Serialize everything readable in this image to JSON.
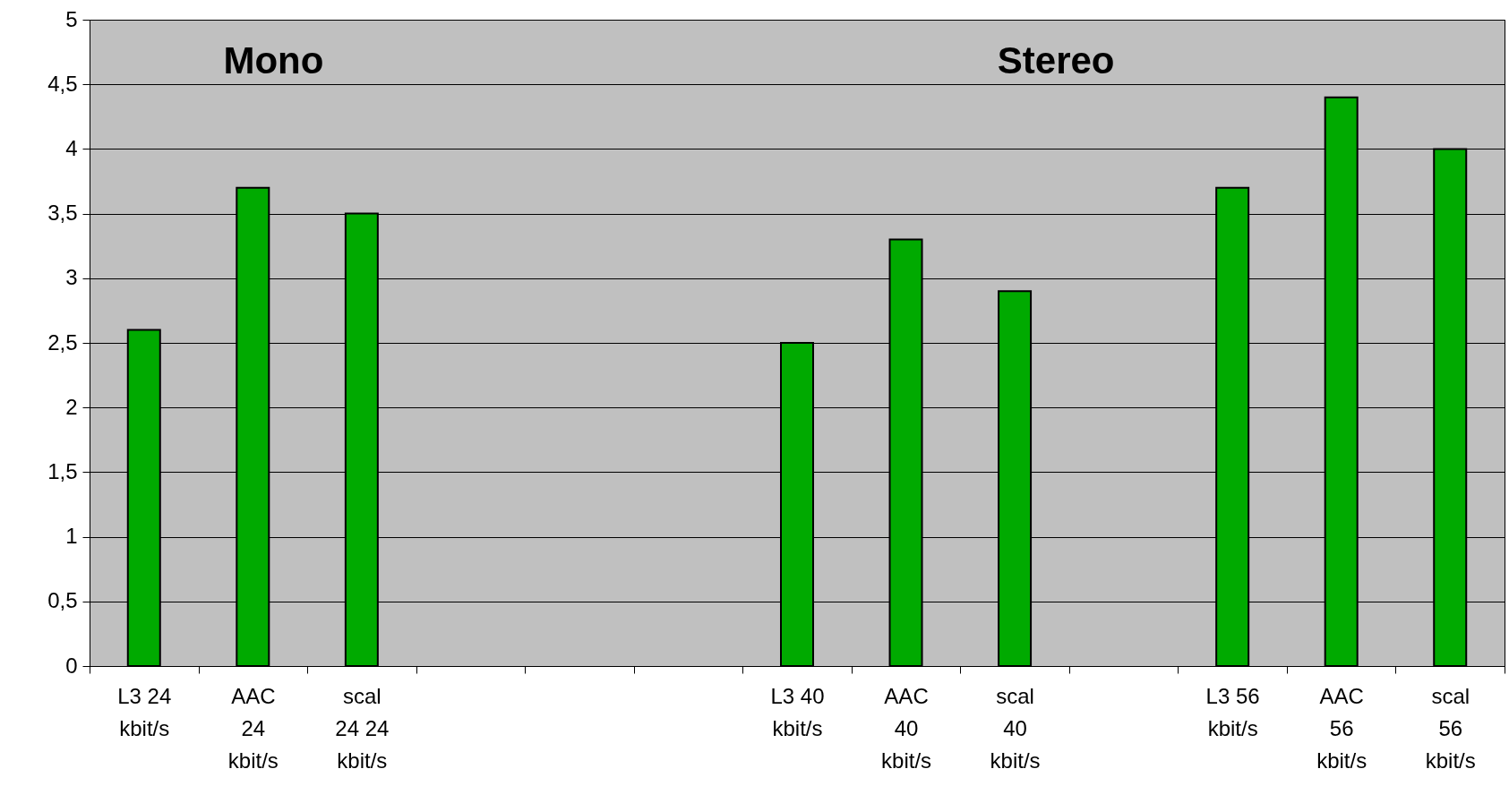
{
  "chart_data": {
    "type": "bar",
    "categories": [
      "L3 24\nkbit/s",
      "AAC\n24\nkbit/s",
      "scal\n24 24\nkbit/s",
      null,
      null,
      null,
      "L3 40\nkbit/s",
      "AAC\n40\nkbit/s",
      "scal\n40\nkbit/s",
      null,
      "L3 56\nkbit/s",
      "AAC\n56\nkbit/s",
      "scal\n56\nkbit/s"
    ],
    "values": [
      2.6,
      3.7,
      3.5,
      null,
      null,
      null,
      2.5,
      3.3,
      2.9,
      null,
      3.7,
      4.4,
      4.0
    ],
    "color": "#00aa00",
    "ylim": [
      0,
      5
    ],
    "yticks": [
      0,
      {
        "value": 0.5,
        "label": "0,5"
      },
      1,
      {
        "value": 1.5,
        "label": "1,5"
      },
      2,
      {
        "value": 2.5,
        "label": "2,5"
      },
      3,
      {
        "value": 3.5,
        "label": "3,5"
      },
      4,
      {
        "value": 4.5,
        "label": "4,5"
      },
      5
    ],
    "grid": "y",
    "annotations": [
      "Mono",
      "Stereo"
    ]
  }
}
